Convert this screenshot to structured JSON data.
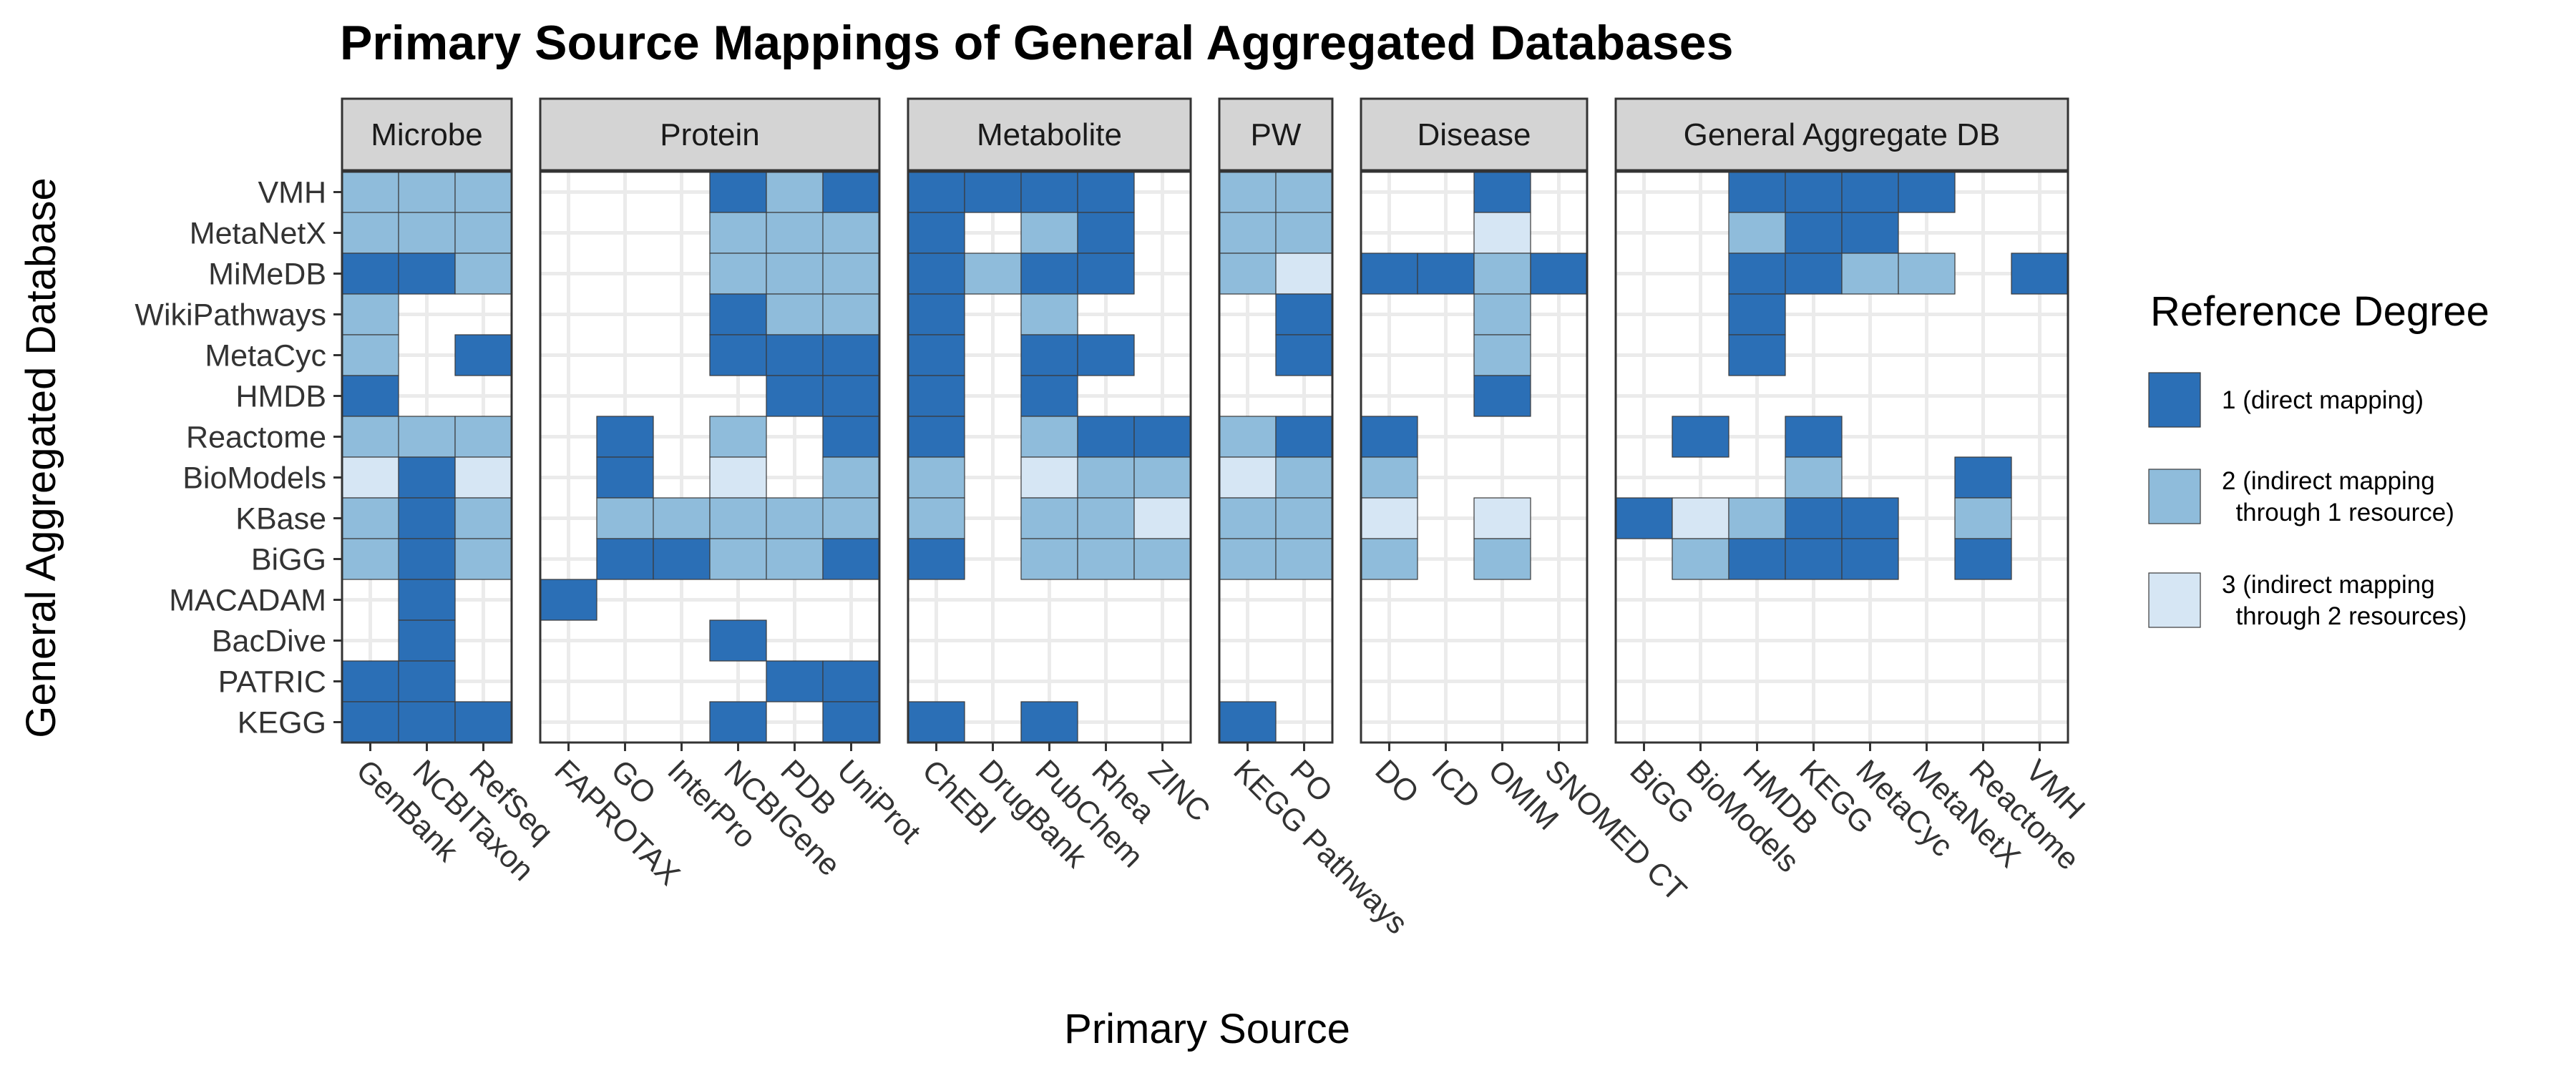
{
  "chart_data": {
    "type": "heatmap",
    "title": "Primary Source Mappings of General Aggregated Databases",
    "xlabel": "Primary Source",
    "ylabel": "General Aggregated Database",
    "grid": true,
    "legend_position": "right",
    "rows": [
      "VMH",
      "MetaNetX",
      "MiMeDB",
      "WikiPathways",
      "MetaCyc",
      "HMDB",
      "Reactome",
      "BioModels",
      "KBase",
      "BiGG",
      "MACADAM",
      "BacDive",
      "PATRIC",
      "KEGG"
    ],
    "facets": [
      {
        "name": "Microbe",
        "columns": [
          "GenBank",
          "NCBITaxon",
          "RefSeq"
        ],
        "values": [
          [
            2,
            2,
            2
          ],
          [
            2,
            2,
            2
          ],
          [
            1,
            1,
            2
          ],
          [
            2,
            0,
            0
          ],
          [
            2,
            0,
            1
          ],
          [
            1,
            0,
            0
          ],
          [
            2,
            2,
            2
          ],
          [
            3,
            1,
            3
          ],
          [
            2,
            1,
            2
          ],
          [
            2,
            1,
            2
          ],
          [
            0,
            1,
            0
          ],
          [
            0,
            1,
            0
          ],
          [
            1,
            1,
            0
          ],
          [
            1,
            1,
            1
          ]
        ]
      },
      {
        "name": "Protein",
        "columns": [
          "FAPROTAX",
          "GO",
          "InterPro",
          "NCBIGene",
          "PDB",
          "UniProt"
        ],
        "values": [
          [
            0,
            0,
            0,
            1,
            2,
            1
          ],
          [
            0,
            0,
            0,
            2,
            2,
            2
          ],
          [
            0,
            0,
            0,
            2,
            2,
            2
          ],
          [
            0,
            0,
            0,
            1,
            2,
            2
          ],
          [
            0,
            0,
            0,
            1,
            1,
            1
          ],
          [
            0,
            0,
            0,
            0,
            1,
            1
          ],
          [
            0,
            1,
            0,
            2,
            0,
            1
          ],
          [
            0,
            1,
            0,
            3,
            0,
            2
          ],
          [
            0,
            2,
            2,
            2,
            2,
            2
          ],
          [
            0,
            1,
            1,
            2,
            2,
            1
          ],
          [
            1,
            0,
            0,
            0,
            0,
            0
          ],
          [
            0,
            0,
            0,
            1,
            0,
            0
          ],
          [
            0,
            0,
            0,
            0,
            1,
            1
          ],
          [
            0,
            0,
            0,
            1,
            0,
            1
          ]
        ]
      },
      {
        "name": "Metabolite",
        "columns": [
          "ChEBI",
          "DrugBank",
          "PubChem",
          "Rhea",
          "ZINC"
        ],
        "values": [
          [
            1,
            1,
            1,
            1,
            0
          ],
          [
            1,
            0,
            2,
            1,
            0
          ],
          [
            1,
            2,
            1,
            1,
            0
          ],
          [
            1,
            0,
            2,
            0,
            0
          ],
          [
            1,
            0,
            1,
            1,
            0
          ],
          [
            1,
            0,
            1,
            0,
            0
          ],
          [
            1,
            0,
            2,
            1,
            1
          ],
          [
            2,
            0,
            3,
            2,
            2
          ],
          [
            2,
            0,
            2,
            2,
            3
          ],
          [
            1,
            0,
            2,
            2,
            2
          ],
          [
            0,
            0,
            0,
            0,
            0
          ],
          [
            0,
            0,
            0,
            0,
            0
          ],
          [
            0,
            0,
            0,
            0,
            0
          ],
          [
            1,
            0,
            1,
            0,
            0
          ]
        ]
      },
      {
        "name": "PW",
        "columns": [
          "KEGG Pathways",
          "PO"
        ],
        "values": [
          [
            2,
            2
          ],
          [
            2,
            2
          ],
          [
            2,
            3
          ],
          [
            0,
            1
          ],
          [
            0,
            1
          ],
          [
            0,
            0
          ],
          [
            2,
            1
          ],
          [
            3,
            2
          ],
          [
            2,
            2
          ],
          [
            2,
            2
          ],
          [
            0,
            0
          ],
          [
            0,
            0
          ],
          [
            0,
            0
          ],
          [
            1,
            0
          ]
        ]
      },
      {
        "name": "Disease",
        "columns": [
          "DO",
          "ICD",
          "OMIM",
          "SNOMED CT"
        ],
        "values": [
          [
            0,
            0,
            1,
            0
          ],
          [
            0,
            0,
            3,
            0
          ],
          [
            1,
            1,
            2,
            1
          ],
          [
            0,
            0,
            2,
            0
          ],
          [
            0,
            0,
            2,
            0
          ],
          [
            0,
            0,
            1,
            0
          ],
          [
            1,
            0,
            0,
            0
          ],
          [
            2,
            0,
            0,
            0
          ],
          [
            3,
            0,
            3,
            0
          ],
          [
            2,
            0,
            2,
            0
          ],
          [
            0,
            0,
            0,
            0
          ],
          [
            0,
            0,
            0,
            0
          ],
          [
            0,
            0,
            0,
            0
          ],
          [
            0,
            0,
            0,
            0
          ]
        ]
      },
      {
        "name": "General Aggregate DB",
        "columns": [
          "BiGG",
          "BioModels",
          "HMDB",
          "KEGG",
          "MetaCyc",
          "MetaNetX",
          "Reactome",
          "VMH"
        ],
        "values": [
          [
            0,
            0,
            1,
            1,
            1,
            1,
            0,
            0
          ],
          [
            0,
            0,
            2,
            1,
            1,
            0,
            0,
            0
          ],
          [
            0,
            0,
            1,
            1,
            2,
            2,
            0,
            1
          ],
          [
            0,
            0,
            1,
            0,
            0,
            0,
            0,
            0
          ],
          [
            0,
            0,
            1,
            0,
            0,
            0,
            0,
            0
          ],
          [
            0,
            0,
            0,
            0,
            0,
            0,
            0,
            0
          ],
          [
            0,
            1,
            0,
            1,
            0,
            0,
            0,
            0
          ],
          [
            0,
            0,
            0,
            2,
            0,
            0,
            1,
            0
          ],
          [
            1,
            3,
            2,
            1,
            1,
            0,
            2,
            0
          ],
          [
            0,
            2,
            1,
            1,
            1,
            0,
            1,
            0
          ],
          [
            0,
            0,
            0,
            0,
            0,
            0,
            0,
            0
          ],
          [
            0,
            0,
            0,
            0,
            0,
            0,
            0,
            0
          ],
          [
            0,
            0,
            0,
            0,
            0,
            0,
            0,
            0
          ],
          [
            0,
            0,
            0,
            0,
            0,
            0,
            0,
            0
          ]
        ]
      }
    ],
    "legend": {
      "title": "Reference Degree",
      "items": [
        {
          "value": 1,
          "label_lines": [
            "1 (direct mapping)"
          ],
          "color": "#2b6fb6"
        },
        {
          "value": 2,
          "label_lines": [
            "2 (indirect mapping",
            "  through 1 resource)"
          ],
          "color": "#8fbcdb"
        },
        {
          "value": 3,
          "label_lines": [
            "3 (indirect mapping",
            "  through 2 resources)"
          ],
          "color": "#d6e6f4"
        }
      ]
    },
    "colors": {
      "1": "#2b6fb6",
      "2": "#8fbcdb",
      "3": "#d6e6f4",
      "grid": "#ebebeb",
      "strip_fill": "#d4d4d4",
      "panel_border": "#333333"
    }
  }
}
